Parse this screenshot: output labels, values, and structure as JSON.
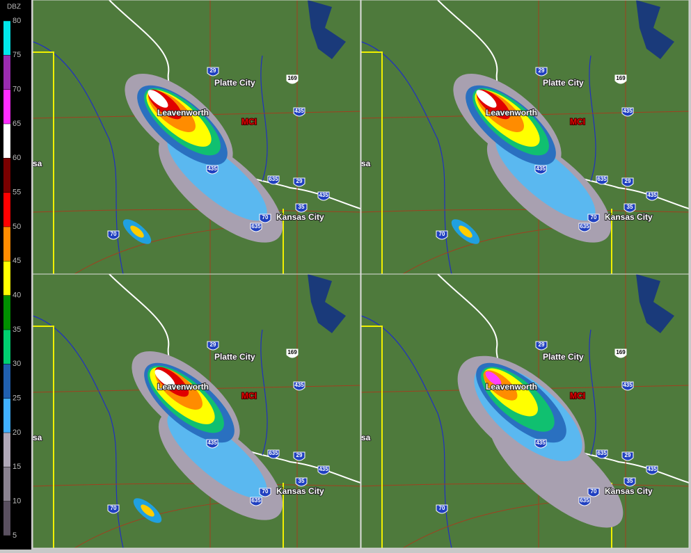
{
  "legend": {
    "title": "DBZ",
    "ticks": [
      80,
      75,
      70,
      65,
      60,
      55,
      50,
      45,
      40,
      35,
      30,
      25,
      20,
      15,
      10,
      5
    ],
    "colors": [
      "#00e8ec",
      "#9a2cb0",
      "#ff2cff",
      "#ffffff",
      "#7a0000",
      "#ff0000",
      "#ff8c00",
      "#ffff00",
      "#009000",
      "#00d070",
      "#2060b0",
      "#40b0ff",
      "#b0a8b8",
      "#8a8290",
      "#5a5060"
    ]
  },
  "map": {
    "places": [
      "Platte City",
      "Leavenworth",
      "MCI",
      "Kansas City",
      "sa"
    ],
    "shields": [
      "29",
      "169",
      "435",
      "435",
      "635",
      "29",
      "435",
      "35",
      "70",
      "635",
      "70"
    ]
  }
}
